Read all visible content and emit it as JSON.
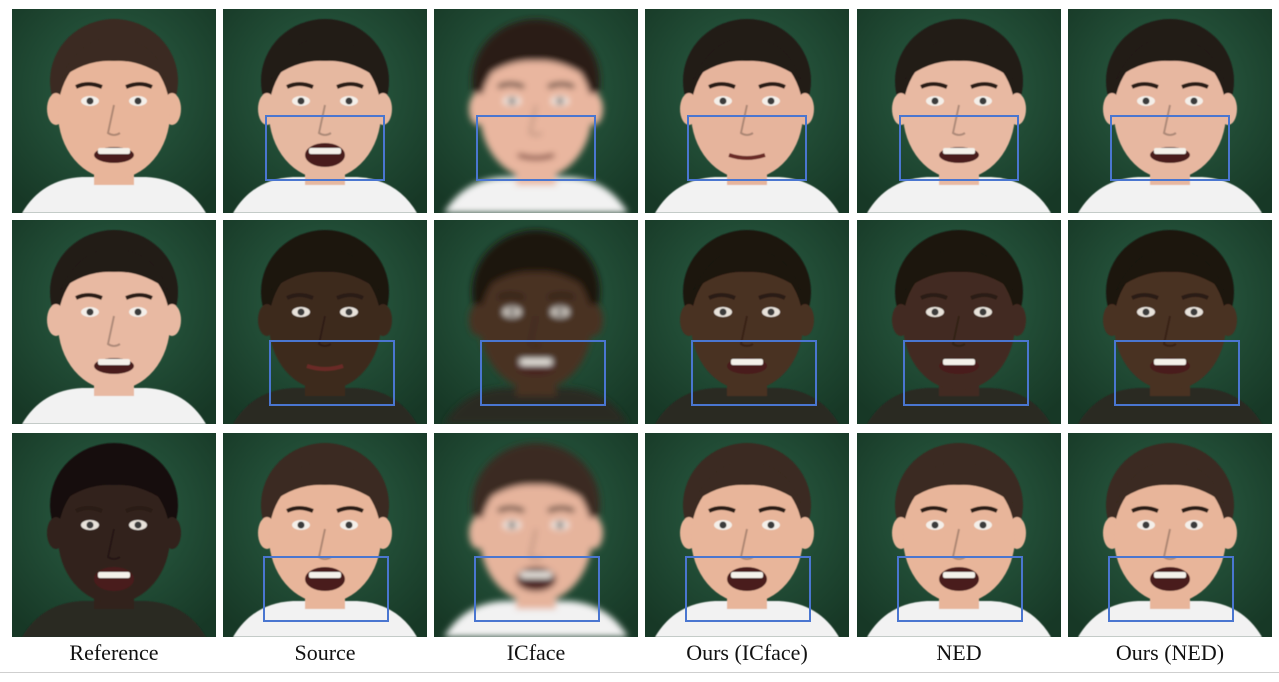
{
  "figure": {
    "columns": [
      "Reference",
      "Source",
      "ICface",
      "Ours (ICface)",
      "NED",
      "Ours (NED)"
    ],
    "rows": [
      {
        "cells": [
          {
            "subject": "man-squinting-grimace",
            "skin": "#e8b59a",
            "hair": "#3a2a20",
            "blur": false,
            "highlight": false
          },
          {
            "subject": "man-open-mouth-looking-up",
            "skin": "#e6b8a0",
            "hair": "#231a16",
            "blur": false,
            "highlight": true
          },
          {
            "subject": "man-frown-blurred",
            "skin": "#e9b69f",
            "hair": "#2a1e18",
            "blur": true,
            "highlight": true
          },
          {
            "subject": "man-frown",
            "skin": "#e6b49c",
            "hair": "#231a16",
            "blur": false,
            "highlight": true
          },
          {
            "subject": "man-grimace",
            "skin": "#e8b9a2",
            "hair": "#231a16",
            "blur": false,
            "highlight": true
          },
          {
            "subject": "man-grimace",
            "skin": "#e7b7a0",
            "hair": "#231a16",
            "blur": false,
            "highlight": true
          }
        ]
      },
      {
        "cells": [
          {
            "subject": "man-smile-hoodie",
            "skin": "#e8b9a2",
            "hair": "#231a16",
            "blur": false,
            "highlight": false
          },
          {
            "subject": "woman-neutral-dark",
            "skin": "#3e2a1e",
            "hair": "#1a1410",
            "blur": false,
            "highlight": true
          },
          {
            "subject": "woman-smile-blurred",
            "skin": "#4a3022",
            "hair": "#1a1410",
            "blur": true,
            "highlight": true
          },
          {
            "subject": "woman-smile",
            "skin": "#4a3022",
            "hair": "#1a1410",
            "blur": false,
            "highlight": true
          },
          {
            "subject": "woman-grimace",
            "skin": "#432c20",
            "hair": "#1a1410",
            "blur": false,
            "highlight": true
          },
          {
            "subject": "woman-smile",
            "skin": "#4a3022",
            "hair": "#1a1410",
            "blur": false,
            "highlight": true
          }
        ]
      },
      {
        "cells": [
          {
            "subject": "woman-surprised-dark",
            "skin": "#33221a",
            "hair": "#15100c",
            "blur": false,
            "highlight": false
          },
          {
            "subject": "man-surprised-open-mouth",
            "skin": "#e8b59a",
            "hair": "#3a2a20",
            "blur": false,
            "highlight": true
          },
          {
            "subject": "man-surprised-blurred",
            "skin": "#e6b49c",
            "hair": "#3a2a20",
            "blur": true,
            "highlight": true
          },
          {
            "subject": "man-surprised",
            "skin": "#e8b59a",
            "hair": "#3a2a20",
            "blur": false,
            "highlight": true
          },
          {
            "subject": "man-shouting",
            "skin": "#e8b59a",
            "hair": "#3a2a20",
            "blur": false,
            "highlight": true
          },
          {
            "subject": "man-surprised",
            "skin": "#e8b59a",
            "hair": "#3a2a20",
            "blur": false,
            "highlight": true
          }
        ]
      }
    ],
    "highlight_color": "#4a76d0",
    "background_color": "#1f4a34"
  }
}
